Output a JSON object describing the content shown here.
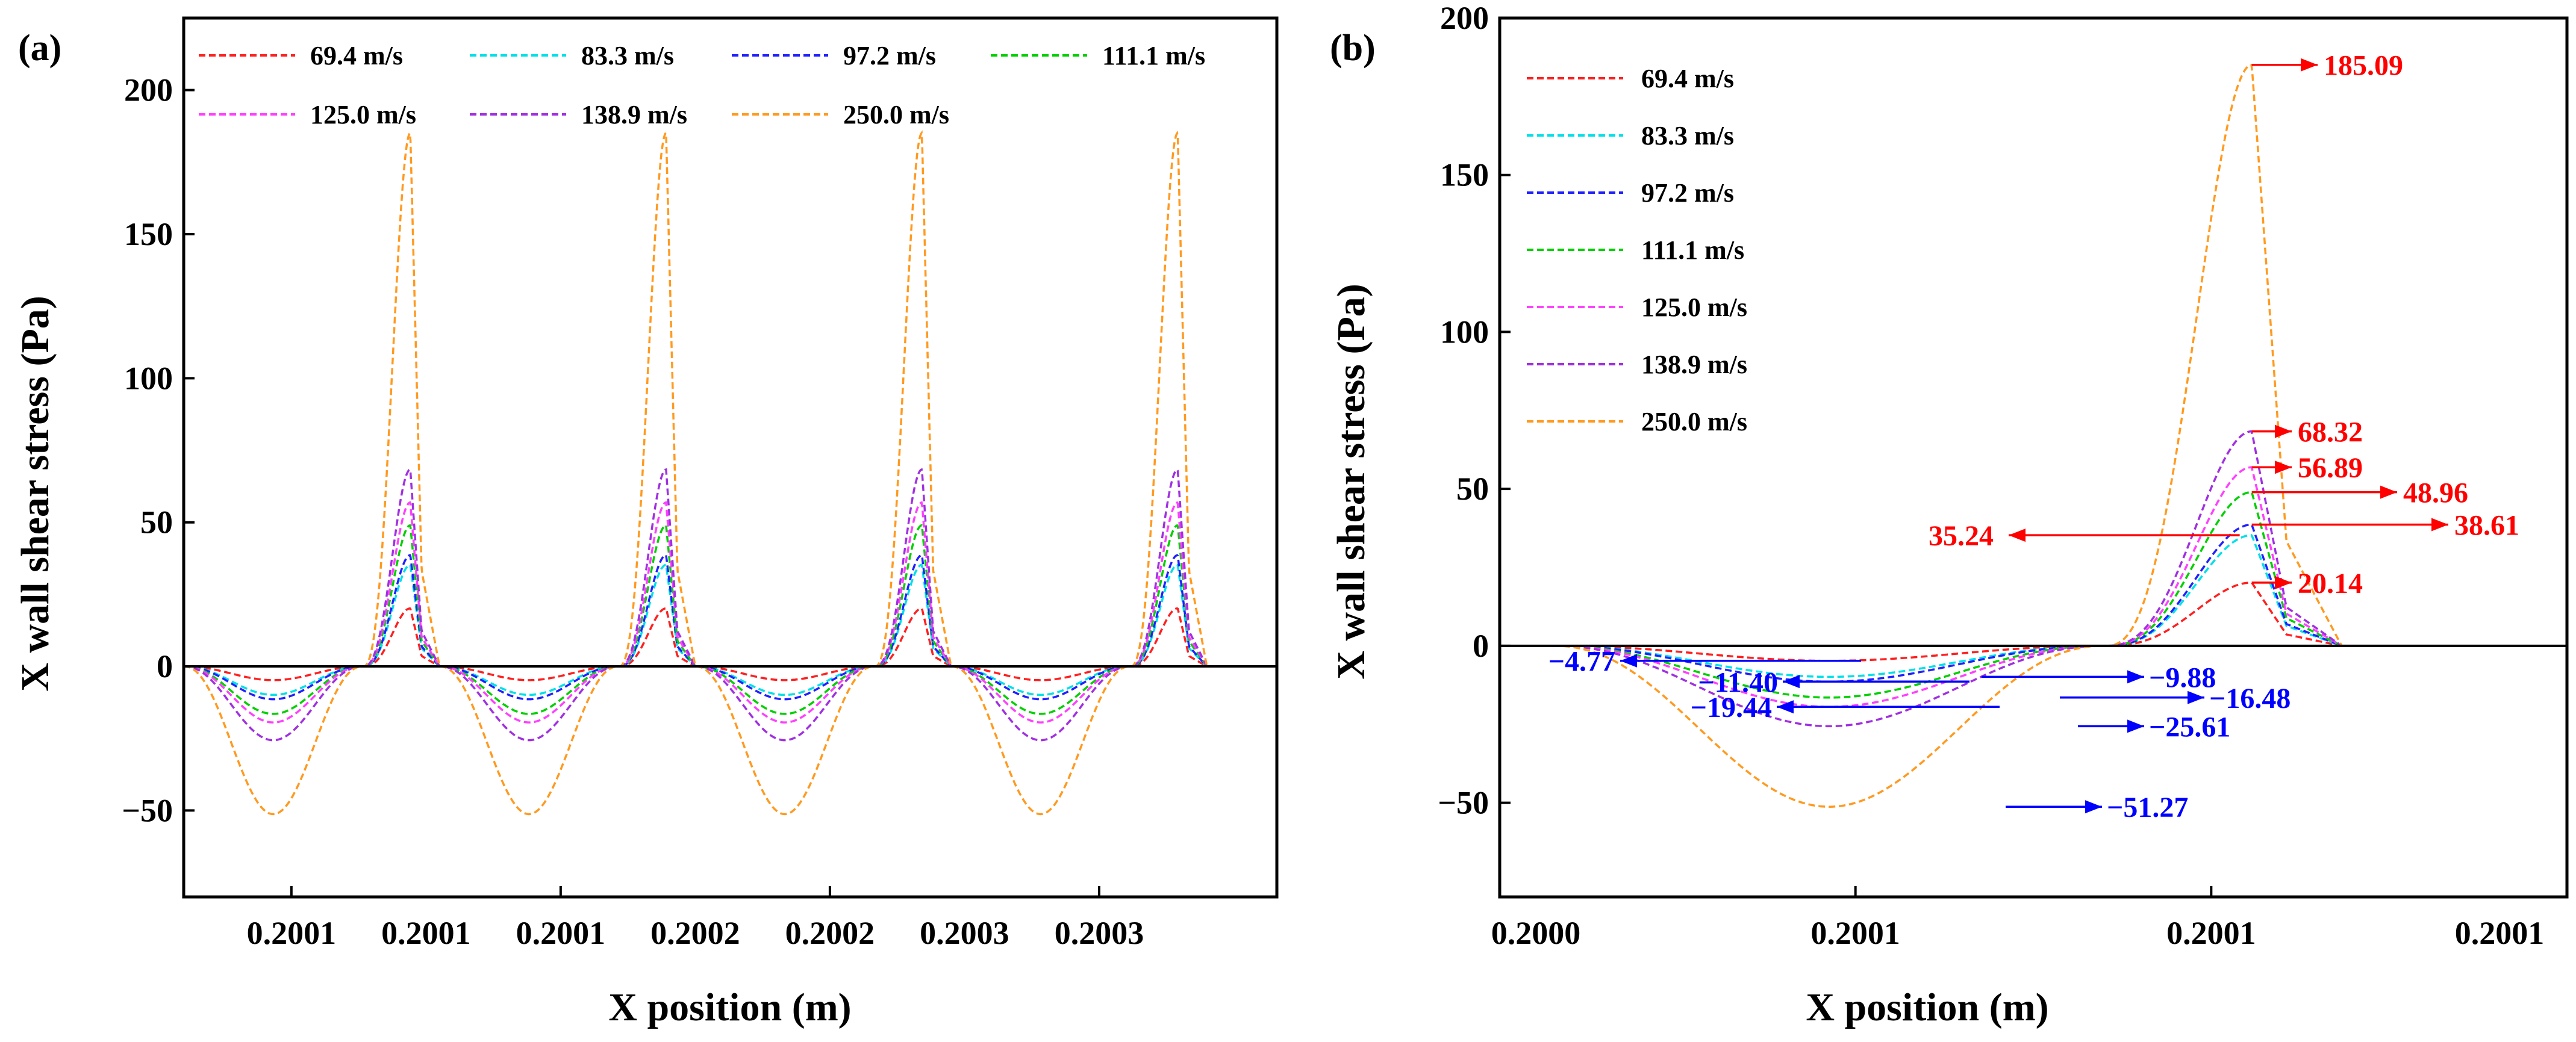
{
  "chart_data": [
    {
      "type": "line",
      "panel_label": "(a)",
      "xlabel": "X position (m)",
      "ylabel": "X wall shear stress (Pa)",
      "ylim": [
        -80,
        225
      ],
      "yticks": [
        -50,
        0,
        50,
        100,
        150,
        200
      ],
      "ytick_labels": [
        "−50",
        "0",
        "50",
        "100",
        "150",
        "200"
      ],
      "xlim": [
        0,
        4.06
      ],
      "xtick_positions": [
        0.4,
        1.4,
        2.4,
        3.4
      ],
      "xtick_labels": [
        "0.2001",
        "0.2001",
        "0.2001",
        "0.2002",
        "0.2002",
        "0.2003",
        "0.2003"
      ],
      "xtick_label_positions": [
        0.4,
        0.9,
        1.4,
        1.9,
        2.4,
        2.9,
        3.4
      ],
      "periods": 4,
      "period_length": 0.95,
      "legend": [
        "69.4 m/s",
        "83.3 m/s",
        "97.2 m/s",
        "111.1 m/s",
        "125.0 m/s",
        "138.9 m/s",
        "250.0 m/s"
      ],
      "legend_position": "top (two rows)",
      "grid": false,
      "zero_line": true,
      "series": [
        {
          "name": "69.4 m/s",
          "color": "#ff2020",
          "peak": 20.14,
          "trough": -4.77
        },
        {
          "name": "83.3 m/s",
          "color": "#00e0e8",
          "peak": 35.24,
          "trough": -9.88
        },
        {
          "name": "97.2 m/s",
          "color": "#2020ff",
          "peak": 38.61,
          "trough": -11.4
        },
        {
          "name": "111.1 m/s",
          "color": "#00d000",
          "peak": 48.96,
          "trough": -16.48
        },
        {
          "name": "125.0 m/s",
          "color": "#ff40ff",
          "peak": 56.89,
          "trough": -19.44
        },
        {
          "name": "138.9 m/s",
          "color": "#a030e0",
          "peak": 68.32,
          "trough": -25.61
        },
        {
          "name": "250.0 m/s",
          "color": "#ff9a20",
          "peak": 185.09,
          "trough": -51.27
        }
      ]
    },
    {
      "type": "line",
      "panel_label": "(b)",
      "xlabel": "X position (m)",
      "ylabel": "X wall shear stress (Pa)",
      "ylim": [
        -80,
        200
      ],
      "yticks": [
        -50,
        0,
        50,
        100,
        150,
        200
      ],
      "ytick_labels": [
        "−50",
        "0",
        "50",
        "100",
        "150",
        "200"
      ],
      "xlim": [
        0,
        1.8
      ],
      "xtick_positions": [
        0,
        0.6,
        1.2,
        1.8
      ],
      "xtick_labels": [
        "0.2000",
        "0.2001",
        "0.2001",
        "0.2001"
      ],
      "legend": [
        "69.4 m/s",
        "83.3 m/s",
        "97.2 m/s",
        "111.1 m/s",
        "125.0 m/s",
        "138.9 m/s",
        "250.0 m/s"
      ],
      "legend_position": "top-left (single column)",
      "grid": false,
      "zero_line": true,
      "peak_annotations": [
        "185.09",
        "68.32",
        "56.89",
        "48.96",
        "38.61",
        "35.24",
        "20.14"
      ],
      "trough_annotations": [
        "−4.77",
        "−9.88",
        "−11.40",
        "−16.48",
        "−19.44",
        "−25.61",
        "−51.27"
      ]
    }
  ]
}
